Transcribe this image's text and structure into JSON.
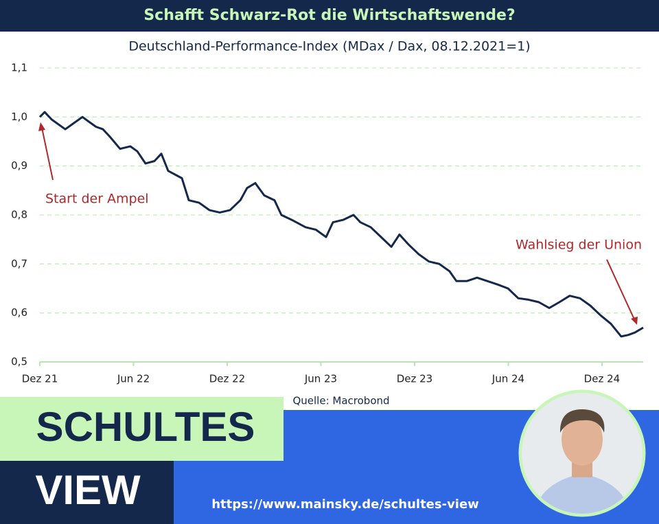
{
  "chart_data": {
    "type": "line",
    "title": "Schafft Schwarz-Rot die Wirtschaftswende?",
    "subtitle": "Deutschland-Performance-Index (MDax / Dax, 08.12.2021=1)",
    "source": "Quelle: Macrobond",
    "annotations": [
      "Start der Ampel",
      "Wahlsieg der Union"
    ],
    "color": "#14284b",
    "grid": true,
    "x": [
      0,
      0.31,
      0.75,
      1.63,
      2.07,
      2.73,
      3.16,
      3.6,
      4.04,
      4.48,
      5.14,
      5.8,
      6.24,
      6.77,
      7.34,
      7.78,
      8.22,
      9.1,
      9.54,
      10.2,
      10.86,
      11.52,
      12.18,
      12.84,
      13.27,
      13.8,
      14.37,
      15.03,
      15.47,
      16.13,
      17.01,
      17.67,
      18.33,
      18.77,
      19.43,
      20.09,
      20.53,
      21.19,
      21.85,
      22.51,
      23.03,
      23.6,
      24.26,
      24.92,
      25.58,
      26.24,
      26.68,
      27.34,
      28.0,
      28.66,
      29.32,
      29.98,
      30.64,
      31.3,
      31.96,
      32.62,
      33.27,
      33.93,
      34.59,
      35.25,
      35.91,
      36.57,
      37.23,
      37.67,
      38.11,
      38.64
    ],
    "values": [
      1.0,
      1.01,
      0.995,
      0.975,
      0.985,
      1.0,
      0.99,
      0.98,
      0.975,
      0.96,
      0.935,
      0.94,
      0.93,
      0.905,
      0.91,
      0.925,
      0.89,
      0.875,
      0.83,
      0.825,
      0.81,
      0.805,
      0.81,
      0.83,
      0.855,
      0.865,
      0.84,
      0.83,
      0.8,
      0.79,
      0.775,
      0.77,
      0.755,
      0.785,
      0.79,
      0.8,
      0.785,
      0.775,
      0.755,
      0.735,
      0.76,
      0.74,
      0.72,
      0.705,
      0.7,
      0.685,
      0.665,
      0.665,
      0.672,
      0.665,
      0.658,
      0.65,
      0.63,
      0.627,
      0.622,
      0.61,
      0.622,
      0.635,
      0.63,
      0.615,
      0.595,
      0.578,
      0.552,
      0.555,
      0.56,
      0.57
    ],
    "xlim": [
      0,
      38.64
    ],
    "xticks": [
      {
        "value": 0,
        "label": "Dez 21"
      },
      {
        "value": 6,
        "label": "Jun 22"
      },
      {
        "value": 12,
        "label": "Dez 22"
      },
      {
        "value": 18,
        "label": "Jun 23"
      },
      {
        "value": 24,
        "label": "Dez 23"
      },
      {
        "value": 30,
        "label": "Jun 24"
      },
      {
        "value": 36,
        "label": "Dez 24"
      }
    ],
    "ylim": [
      0.5,
      1.1
    ],
    "yticks": [
      {
        "value": 0.5,
        "label": "0,5"
      },
      {
        "value": 0.6,
        "label": "0,6"
      },
      {
        "value": 0.7,
        "label": "0,7"
      },
      {
        "value": 0.8,
        "label": "0,8"
      },
      {
        "value": 0.9,
        "label": "0,9"
      },
      {
        "value": 1.0,
        "label": "1,0"
      },
      {
        "value": 1.1,
        "label": "1,1"
      }
    ]
  },
  "branding": {
    "name_top": "SCHULTES",
    "name_bottom": "VIEW",
    "url": "https://www.mainsky.de/schultes-view"
  }
}
